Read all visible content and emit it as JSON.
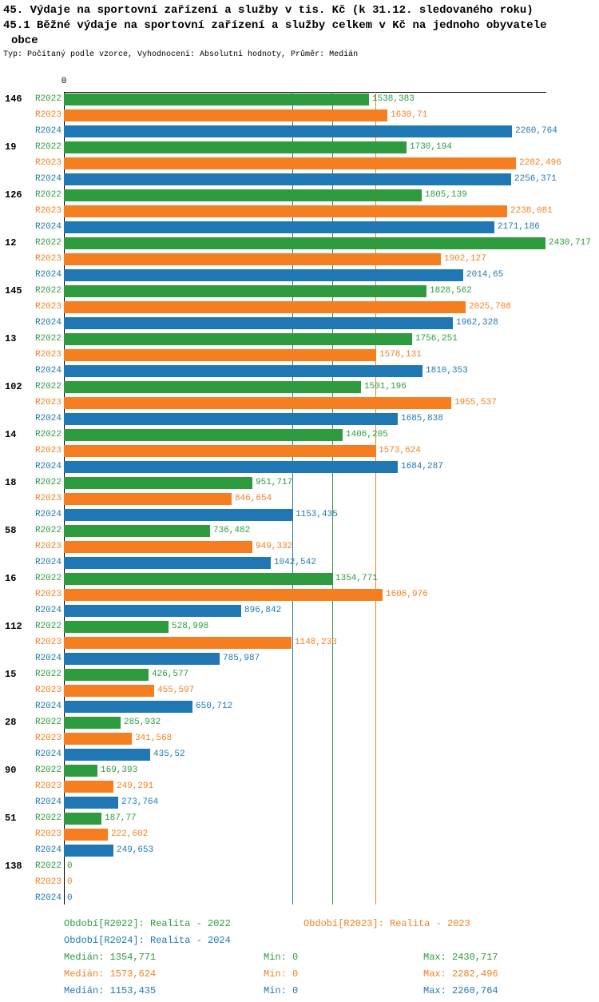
{
  "title": {
    "line1": "45. Výdaje na sportovní zařízení a služby v tis. Kč (k 31.12. sledovaného roku)",
    "line2": "45.1 Běžné výdaje na sportovní zařízení a služby celkem v Kč na jednoho obyvatele",
    "line3": "obce",
    "subtitle": "Typ: Počítaný podle vzorce, Vyhodnocení: Absolutní hodnoty, Průměr: Medián"
  },
  "colors": {
    "r2022": "#2e9b3f",
    "r2023": "#f57f20",
    "r2024": "#1f77b4",
    "axis": "#000000"
  },
  "chart_data": {
    "type": "bar",
    "orientation": "horizontal",
    "grid": false,
    "x_axis": {
      "tick_labels": [
        "0"
      ],
      "min": 0,
      "max": 2430.717
    },
    "series": [
      {
        "name": "R2022",
        "color": "#2e9b3f",
        "median": 1354.771,
        "min": 0,
        "max": 2430.717
      },
      {
        "name": "R2023",
        "color": "#f57f20",
        "median": 1573.624,
        "min": 0,
        "max": 2282.496
      },
      {
        "name": "R2024",
        "color": "#1f77b4",
        "median": 1153.435,
        "min": 0,
        "max": 2260.764
      }
    ],
    "categories": [
      "146",
      "19",
      "126",
      "12",
      "145",
      "13",
      "102",
      "14",
      "18",
      "58",
      "16",
      "112",
      "15",
      "28",
      "90",
      "51",
      "138"
    ],
    "values": [
      [
        1538.383,
        1630.71,
        2260.764
      ],
      [
        1730.194,
        2282.496,
        2256.371
      ],
      [
        1805.139,
        2238.081,
        2171.186
      ],
      [
        2430.717,
        1902.127,
        2014.65
      ],
      [
        1828.562,
        2025.708,
        1962.328
      ],
      [
        1756.251,
        1578.131,
        1810.353
      ],
      [
        1501.196,
        1955.537,
        1685.838
      ],
      [
        1406.205,
        1573.624,
        1684.287
      ],
      [
        951.717,
        846.654,
        1153.435
      ],
      [
        736.482,
        949.332,
        1042.542
      ],
      [
        1354.771,
        1606.976,
        896.842
      ],
      [
        528.998,
        1148.233,
        785.987
      ],
      [
        426.577,
        455.597,
        650.712
      ],
      [
        285.932,
        341.568,
        435.52
      ],
      [
        169.393,
        249.291,
        273.764
      ],
      [
        187.77,
        222.602,
        249.653
      ],
      [
        0,
        0,
        0
      ]
    ],
    "value_labels": [
      [
        "1538,383",
        "1630,71",
        "2260,764"
      ],
      [
        "1730,194",
        "2282,496",
        "2256,371"
      ],
      [
        "1805,139",
        "2238,081",
        "2171,186"
      ],
      [
        "2430,717",
        "1902,127",
        "2014,65"
      ],
      [
        "1828,562",
        "2025,708",
        "1962,328"
      ],
      [
        "1756,251",
        "1578,131",
        "1810,353"
      ],
      [
        "1501,196",
        "1955,537",
        "1685,838"
      ],
      [
        "1406,205",
        "1573,624",
        "1684,287"
      ],
      [
        "951,717",
        "846,654",
        "1153,435"
      ],
      [
        "736,482",
        "949,332",
        "1042,542"
      ],
      [
        "1354,771",
        "1606,976",
        "896,842"
      ],
      [
        "528,998",
        "1148,233",
        "785,987"
      ],
      [
        "426,577",
        "455,597",
        "650,712"
      ],
      [
        "285,932",
        "341,568",
        "435,52"
      ],
      [
        "169,393",
        "249,291",
        "273,764"
      ],
      [
        "187,77",
        "222,602",
        "249,653"
      ],
      [
        "0",
        "0",
        "0"
      ]
    ]
  },
  "footer": {
    "legend": {
      "r2022": "Období[R2022]: Realita - 2022",
      "r2023": "Období[R2023]: Realita - 2023",
      "r2024": "Období[R2024]: Realita - 2024"
    },
    "stats": [
      {
        "median": "Medián: 1354,771",
        "min": "Min: 0",
        "max": "Max: 2430,717"
      },
      {
        "median": "Medián: 1573,624",
        "min": "Min: 0",
        "max": "Max: 2282,496"
      },
      {
        "median": "Medián: 1153,435",
        "min": "Min: 0",
        "max": "Max: 2260,764"
      }
    ]
  }
}
